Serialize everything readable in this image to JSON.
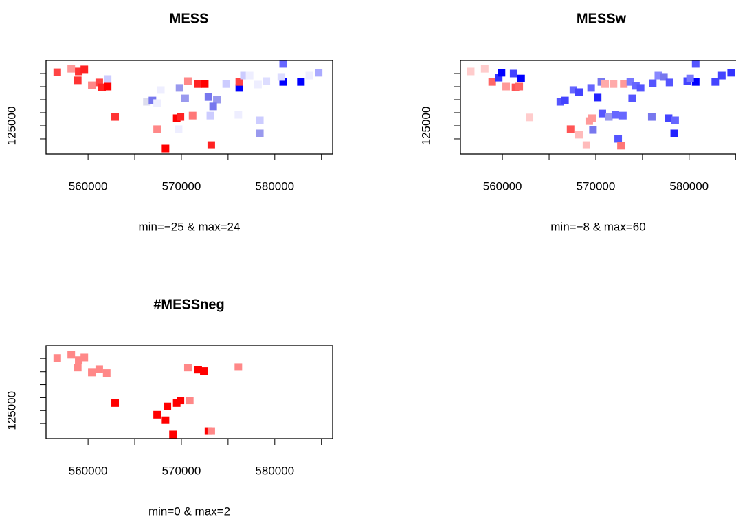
{
  "chart_data": [
    {
      "type": "scatter",
      "title": "MESS",
      "xlabel": "min=−25 & max=24",
      "xlim": [
        555500,
        586200
      ],
      "ylim": [
        114200,
        150000
      ],
      "xticks": [
        560000,
        570000,
        580000
      ],
      "xminor_ticks": [
        565000,
        575000,
        585000
      ],
      "yticks": [
        125000
      ],
      "yminor_ticks": [
        120000,
        130000,
        135000,
        140000,
        145000
      ],
      "x": [
        556700,
        558200,
        559000,
        559600,
        558900,
        560400,
        561200,
        561500,
        562100,
        562900,
        562100,
        567800,
        566300,
        566900,
        567400,
        568300,
        567400,
        569700,
        569800,
        570400,
        569500,
        569900,
        570700,
        571800,
        572500,
        572900,
        573800,
        573400,
        573100,
        571200,
        573200,
        574800,
        576200,
        576200,
        576700,
        577300,
        578200,
        576100,
        578400,
        578400,
        579100,
        580900,
        580900,
        580700,
        582800,
        583700,
        584700
      ],
      "y": [
        145500,
        146800,
        145800,
        146600,
        142400,
        140500,
        141600,
        139700,
        142900,
        128400,
        140000,
        138700,
        134200,
        134700,
        133700,
        116300,
        123700,
        123700,
        139500,
        135500,
        127900,
        128400,
        142100,
        141000,
        141000,
        136000,
        135000,
        132400,
        128900,
        128900,
        117600,
        141000,
        139500,
        141800,
        144200,
        144200,
        140800,
        129200,
        127100,
        122100,
        142100,
        148700,
        141800,
        143700,
        141800,
        144200,
        145300
      ],
      "colors": [
        "#f44",
        "#f99",
        "#f33",
        "#f22",
        "#f33",
        "#f88",
        "#f44",
        "#f22",
        "#ccf",
        "#f33",
        "#f00",
        "#eef",
        "#dde",
        "#77e",
        "#eef",
        "#f00",
        "#f88",
        "#eef",
        "#99e",
        "#99e",
        "#f00",
        "#f22",
        "#f88",
        "#f22",
        "#f00",
        "#77e",
        "#99e",
        "#77e",
        "#ccf",
        "#f77",
        "#f22",
        "#ccf",
        "#00f",
        "#f44",
        "#ccf",
        "#eef",
        "#eef",
        "#eef",
        "#ccf",
        "#99e",
        "#ddf",
        "#66f",
        "#00f",
        "#ddf",
        "#00f",
        "#eef",
        "#aaf"
      ]
    },
    {
      "type": "scatter",
      "title": "MESSw",
      "xlabel": "min=−8 & max=60",
      "xlim": [
        555500,
        586200
      ],
      "ylim": [
        114200,
        150000
      ],
      "xticks": [
        560000,
        570000,
        580000
      ],
      "xminor_ticks": [
        565000,
        575000,
        585000
      ],
      "yticks": [
        125000
      ],
      "yminor_ticks": [
        120000,
        130000,
        135000,
        140000,
        145000
      ],
      "x": [
        556600,
        558100,
        558900,
        559600,
        559900,
        561200,
        562000,
        560400,
        561400,
        561800,
        562900,
        566200,
        566700,
        567600,
        568200,
        569500,
        570600,
        570200,
        571000,
        571900,
        573000,
        570700,
        571400,
        572100,
        569600,
        569300,
        567300,
        568200,
        569000,
        569700,
        572400,
        572700,
        572900,
        573700,
        574300,
        573900,
        574800,
        576000,
        576100,
        576700,
        577300,
        577900,
        577800,
        578500,
        578400,
        579800,
        580700,
        580700,
        580100,
        582800,
        583500,
        584500
      ],
      "y": [
        145800,
        146800,
        141800,
        143400,
        145300,
        145000,
        143100,
        140000,
        139700,
        140000,
        128200,
        134200,
        134700,
        138700,
        137900,
        139500,
        141800,
        135800,
        141000,
        141000,
        141000,
        129700,
        128400,
        129200,
        127900,
        126800,
        123700,
        121600,
        117600,
        123400,
        120000,
        117400,
        128900,
        141800,
        140300,
        135500,
        139500,
        128400,
        141300,
        144200,
        143700,
        141600,
        127900,
        127100,
        122100,
        142100,
        148700,
        141800,
        143100,
        141800,
        144200,
        145300
      ],
      "colors": [
        "#fcc",
        "#fcc",
        "#f66",
        "#33f",
        "#00f",
        "#44f",
        "#00f",
        "#f99",
        "#f55",
        "#f66",
        "#fcc",
        "#55f",
        "#44f",
        "#66f",
        "#44f",
        "#66f",
        "#77e",
        "#22f",
        "#faa",
        "#faa",
        "#f99",
        "#55f",
        "#99e",
        "#66f",
        "#f99",
        "#f99",
        "#f55",
        "#fbb",
        "#fbb",
        "#77e",
        "#55f",
        "#f77",
        "#66f",
        "#77f",
        "#66f",
        "#55f",
        "#55f",
        "#77e",
        "#55f",
        "#88f",
        "#77e",
        "#55f",
        "#44f",
        "#66f",
        "#22f",
        "#44f",
        "#55f",
        "#00f",
        "#77f",
        "#44f",
        "#44f",
        "#33f"
      ]
    },
    {
      "type": "scatter",
      "title": "#MESSneg",
      "xlabel": "min=0 & max=2",
      "xlim": [
        555500,
        586200
      ],
      "ylim": [
        114200,
        150000
      ],
      "xticks": [
        560000,
        570000,
        580000
      ],
      "xminor_ticks": [
        565000,
        575000,
        585000
      ],
      "yticks": [
        125000
      ],
      "yminor_ticks": [
        120000,
        130000,
        135000,
        140000,
        145000
      ],
      "x": [
        556700,
        558200,
        559000,
        559600,
        558900,
        560400,
        561200,
        562000,
        562900,
        567400,
        568500,
        568300,
        569100,
        569500,
        569900,
        570700,
        571800,
        572400,
        570900,
        572900,
        573200,
        576100
      ],
      "y": [
        145300,
        146600,
        144500,
        145500,
        141600,
        139700,
        141000,
        139500,
        127900,
        123400,
        126600,
        121300,
        115800,
        127900,
        128900,
        141600,
        140800,
        140300,
        128900,
        117100,
        117100,
        141800
      ],
      "colors": [
        "#f88",
        "#f88",
        "#f88",
        "#f88",
        "#f88",
        "#f88",
        "#f88",
        "#f88",
        "#f00",
        "#f00",
        "#f00",
        "#f00",
        "#f00",
        "#f00",
        "#f00",
        "#f88",
        "#f00",
        "#f00",
        "#f88",
        "#f00",
        "#f88",
        "#f88"
      ]
    }
  ]
}
